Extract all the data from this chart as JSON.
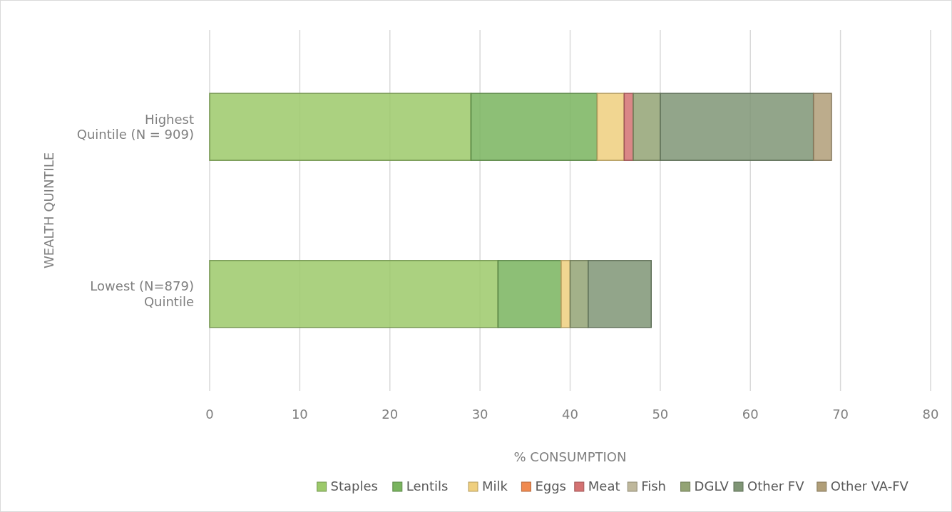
{
  "chart_data": {
    "type": "bar",
    "orientation": "horizontal",
    "stacked": true,
    "xlabel": "% CONSUMPTION",
    "ylabel": "WEALTH QUINTILE",
    "categories": [
      "Highest\nQuintile (N = 909)",
      "Lowest (N=879)\nQuintile"
    ],
    "series": [
      {
        "name": "Staples",
        "color": "#9cc96a",
        "values": [
          29,
          32
        ]
      },
      {
        "name": "Lentils",
        "color": "#79b45e",
        "values": [
          14,
          7
        ]
      },
      {
        "name": "Milk",
        "color": "#efcf7e",
        "values": [
          3,
          1
        ]
      },
      {
        "name": "Eggs",
        "color": "#f08a50",
        "values": [
          0,
          0
        ]
      },
      {
        "name": "Meat",
        "color": "#d47272",
        "values": [
          1,
          0
        ]
      },
      {
        "name": "Fish",
        "color": "#bfb89c",
        "values": [
          0,
          0
        ]
      },
      {
        "name": "DGLV",
        "color": "#93a374",
        "values": [
          3,
          2
        ]
      },
      {
        "name": "Other FV",
        "color": "#7f9575",
        "values": [
          17,
          7
        ]
      },
      {
        "name": "Other VA-FV",
        "color": "#b09e78",
        "values": [
          2,
          0
        ]
      }
    ],
    "xlim": [
      0,
      80
    ],
    "xticks": [
      0,
      10,
      20,
      30,
      40,
      50,
      60,
      70,
      80
    ],
    "grid": "x",
    "legend": "bottom"
  }
}
